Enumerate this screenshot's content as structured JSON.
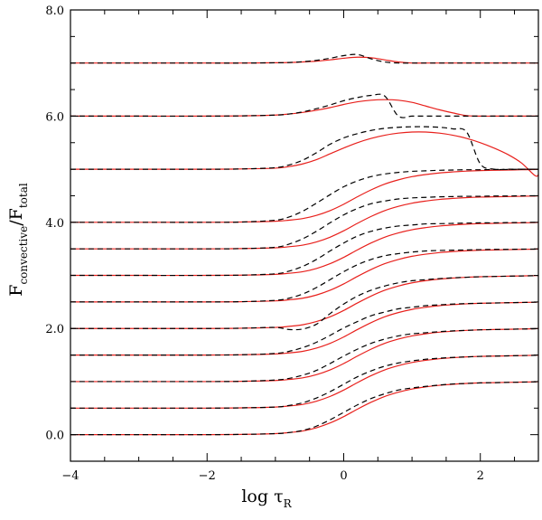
{
  "chart_data": {
    "type": "line",
    "xlabel": {
      "main": "log τ",
      "sub": "R"
    },
    "ylabel": {
      "main": "F",
      "sub1": "convective",
      "slash": "/F",
      "sub2": "total"
    },
    "xlim": [
      -4,
      2.85
    ],
    "ylim": [
      -0.5,
      8.0
    ],
    "x_ticks": [
      -4,
      -2,
      0,
      2
    ],
    "x_tick_labels": [
      "−4",
      "−2",
      "0",
      "2"
    ],
    "x_minor_step": 0.5,
    "y_ticks": [
      0,
      2,
      4,
      6,
      8
    ],
    "y_tick_labels": [
      "0.0",
      "2.0",
      "4.0",
      "6.0",
      "8.0"
    ],
    "y_minor_step": 0.5,
    "grid": false,
    "series_styles": {
      "red": {
        "color": "#e8201c",
        "dash": "none"
      },
      "black": {
        "color": "#000000",
        "dash": "6,4"
      }
    },
    "x": [
      -4.0,
      -3.0,
      -2.0,
      -1.5,
      -1.0,
      -0.8,
      -0.6,
      -0.4,
      -0.2,
      0.0,
      0.2,
      0.4,
      0.6,
      0.8,
      1.0,
      1.2,
      1.4,
      1.6,
      1.8,
      2.0,
      2.2,
      2.4,
      2.6,
      2.8,
      2.85
    ],
    "curves": [
      {
        "offset": 0.0,
        "red": [
          0,
          0,
          0,
          0.005,
          0.02,
          0.04,
          0.07,
          0.13,
          0.22,
          0.34,
          0.48,
          0.61,
          0.72,
          0.8,
          0.86,
          0.9,
          0.93,
          0.95,
          0.965,
          0.975,
          0.98,
          0.985,
          0.99,
          0.995,
          1.0
        ],
        "black": [
          0,
          0,
          0,
          0.005,
          0.02,
          0.04,
          0.08,
          0.16,
          0.28,
          0.42,
          0.56,
          0.68,
          0.77,
          0.84,
          0.88,
          0.91,
          0.935,
          0.955,
          0.965,
          0.975,
          0.98,
          0.985,
          0.99,
          0.995,
          1.0
        ]
      },
      {
        "offset": 0.5,
        "red": [
          0,
          0,
          0,
          0.005,
          0.02,
          0.04,
          0.07,
          0.13,
          0.22,
          0.34,
          0.48,
          0.61,
          0.72,
          0.8,
          0.86,
          0.9,
          0.93,
          0.95,
          0.965,
          0.975,
          0.98,
          0.985,
          0.99,
          0.995,
          1.0
        ],
        "black": [
          0,
          0,
          0,
          0.005,
          0.02,
          0.05,
          0.1,
          0.19,
          0.31,
          0.45,
          0.59,
          0.7,
          0.79,
          0.85,
          0.89,
          0.92,
          0.94,
          0.955,
          0.965,
          0.975,
          0.98,
          0.985,
          0.99,
          0.995,
          1.0
        ]
      },
      {
        "offset": 1.0,
        "red": [
          0,
          0,
          0,
          0.005,
          0.02,
          0.04,
          0.07,
          0.13,
          0.22,
          0.34,
          0.48,
          0.61,
          0.72,
          0.8,
          0.86,
          0.9,
          0.93,
          0.95,
          0.965,
          0.975,
          0.98,
          0.985,
          0.99,
          0.995,
          1.0
        ],
        "black": [
          0,
          0,
          0,
          0.005,
          0.03,
          0.06,
          0.12,
          0.21,
          0.34,
          0.48,
          0.61,
          0.72,
          0.8,
          0.86,
          0.9,
          0.92,
          0.94,
          0.955,
          0.965,
          0.975,
          0.98,
          0.985,
          0.99,
          0.995,
          1.0
        ]
      },
      {
        "offset": 1.5,
        "red": [
          0,
          0,
          0,
          0.005,
          0.02,
          0.04,
          0.07,
          0.13,
          0.22,
          0.34,
          0.48,
          0.61,
          0.72,
          0.8,
          0.86,
          0.9,
          0.93,
          0.95,
          0.965,
          0.975,
          0.98,
          0.985,
          0.99,
          0.995,
          1.0
        ],
        "black": [
          0,
          0,
          0,
          0.005,
          0.03,
          0.07,
          0.14,
          0.24,
          0.37,
          0.51,
          0.63,
          0.74,
          0.81,
          0.87,
          0.9,
          0.93,
          0.945,
          0.96,
          0.97,
          0.975,
          0.98,
          0.985,
          0.99,
          0.995,
          1.0
        ]
      },
      {
        "offset": 2.0,
        "red": [
          0,
          0,
          0,
          0.005,
          0.02,
          0.04,
          0.07,
          0.13,
          0.22,
          0.34,
          0.48,
          0.61,
          0.72,
          0.8,
          0.86,
          0.9,
          0.93,
          0.95,
          0.965,
          0.975,
          0.98,
          0.985,
          0.99,
          0.995,
          1.0
        ],
        "black": [
          0,
          0,
          0,
          0.005,
          0.02,
          -0.02,
          -0.01,
          0.08,
          0.28,
          0.46,
          0.61,
          0.72,
          0.8,
          0.86,
          0.9,
          0.92,
          0.94,
          0.955,
          0.965,
          0.975,
          0.98,
          0.985,
          0.99,
          0.995,
          1.0
        ]
      },
      {
        "offset": 2.5,
        "red": [
          0,
          0,
          0,
          0.005,
          0.02,
          0.04,
          0.07,
          0.13,
          0.22,
          0.34,
          0.48,
          0.61,
          0.72,
          0.8,
          0.86,
          0.9,
          0.93,
          0.95,
          0.965,
          0.975,
          0.98,
          0.985,
          0.99,
          0.995,
          1.0
        ],
        "black": [
          0,
          0,
          0,
          0.005,
          0.03,
          0.07,
          0.15,
          0.27,
          0.42,
          0.57,
          0.7,
          0.8,
          0.87,
          0.91,
          0.94,
          0.96,
          0.97,
          0.975,
          0.98,
          0.985,
          0.99,
          0.99,
          0.995,
          0.995,
          1.0
        ]
      },
      {
        "offset": 3.0,
        "red": [
          0,
          0,
          0,
          0.005,
          0.02,
          0.04,
          0.07,
          0.13,
          0.22,
          0.34,
          0.48,
          0.61,
          0.72,
          0.8,
          0.86,
          0.9,
          0.93,
          0.95,
          0.965,
          0.975,
          0.98,
          0.985,
          0.99,
          0.995,
          1.0
        ],
        "black": [
          0,
          0,
          0,
          0.005,
          0.03,
          0.08,
          0.17,
          0.3,
          0.46,
          0.61,
          0.74,
          0.83,
          0.89,
          0.93,
          0.95,
          0.97,
          0.975,
          0.98,
          0.985,
          0.99,
          0.99,
          0.995,
          0.995,
          1.0,
          1.0
        ]
      },
      {
        "offset": 3.5,
        "red": [
          0,
          0,
          0,
          0.005,
          0.02,
          0.04,
          0.07,
          0.13,
          0.22,
          0.34,
          0.48,
          0.61,
          0.72,
          0.8,
          0.86,
          0.9,
          0.93,
          0.95,
          0.965,
          0.975,
          0.98,
          0.985,
          0.99,
          0.995,
          1.0
        ],
        "black": [
          0,
          0,
          0,
          0.005,
          0.03,
          0.09,
          0.19,
          0.33,
          0.49,
          0.64,
          0.76,
          0.85,
          0.9,
          0.94,
          0.96,
          0.97,
          0.98,
          0.985,
          0.99,
          0.99,
          0.995,
          0.995,
          1.0,
          1.0,
          1.0
        ]
      },
      {
        "offset": 4.0,
        "red": [
          0,
          0,
          0,
          0.005,
          0.02,
          0.04,
          0.07,
          0.13,
          0.22,
          0.34,
          0.48,
          0.61,
          0.72,
          0.8,
          0.86,
          0.9,
          0.93,
          0.95,
          0.965,
          0.975,
          0.98,
          0.985,
          0.99,
          0.995,
          1.0
        ],
        "black": [
          0,
          0,
          0,
          0.005,
          0.04,
          0.1,
          0.21,
          0.36,
          0.52,
          0.67,
          0.78,
          0.86,
          0.91,
          0.94,
          0.96,
          0.97,
          0.98,
          0.985,
          0.99,
          0.99,
          0.995,
          0.995,
          1.0,
          1.0,
          1.0
        ]
      },
      {
        "offset": 5.0,
        "red": [
          0,
          0,
          0,
          0.005,
          0.02,
          0.05,
          0.1,
          0.18,
          0.29,
          0.4,
          0.5,
          0.58,
          0.64,
          0.68,
          0.7,
          0.7,
          0.68,
          0.64,
          0.58,
          0.5,
          0.4,
          0.28,
          0.12,
          -0.12,
          -0.1
        ],
        "black": [
          0,
          0,
          0,
          0.005,
          0.03,
          0.08,
          0.17,
          0.31,
          0.47,
          0.59,
          0.67,
          0.73,
          0.77,
          0.79,
          0.8,
          0.8,
          0.79,
          0.76,
          0.7,
          0.1,
          0.0,
          0.0,
          0.0,
          0.0,
          0.0
        ]
      },
      {
        "offset": 6.0,
        "red": [
          0,
          0,
          0,
          0.005,
          0.02,
          0.04,
          0.07,
          0.11,
          0.16,
          0.22,
          0.27,
          0.3,
          0.31,
          0.3,
          0.26,
          0.19,
          0.12,
          0.06,
          0.01,
          0.0,
          0.0,
          0.0,
          0.0,
          0.0,
          0.0
        ],
        "black": [
          0,
          0,
          0,
          0.005,
          0.02,
          0.04,
          0.08,
          0.14,
          0.21,
          0.29,
          0.35,
          0.39,
          0.38,
          0.0,
          0.0,
          0.0,
          0.0,
          0.0,
          0.0,
          0.0,
          0.0,
          0.0,
          0.0,
          0.0,
          0.0
        ]
      },
      {
        "offset": 7.0,
        "red": [
          0,
          0,
          0,
          0.0,
          0.005,
          0.01,
          0.02,
          0.035,
          0.06,
          0.09,
          0.11,
          0.1,
          0.06,
          0.02,
          0.0,
          0.0,
          0.0,
          0.0,
          0.0,
          0.0,
          0.0,
          0.0,
          0.0,
          0.0,
          0.0
        ],
        "black": [
          0,
          0,
          0,
          0.0,
          0.005,
          0.01,
          0.025,
          0.05,
          0.09,
          0.14,
          0.16,
          0.08,
          0.02,
          0.0,
          0.0,
          0.0,
          0.0,
          0.0,
          0.0,
          0.0,
          0.0,
          0.0,
          0.0,
          0.0,
          0.0
        ]
      }
    ]
  }
}
